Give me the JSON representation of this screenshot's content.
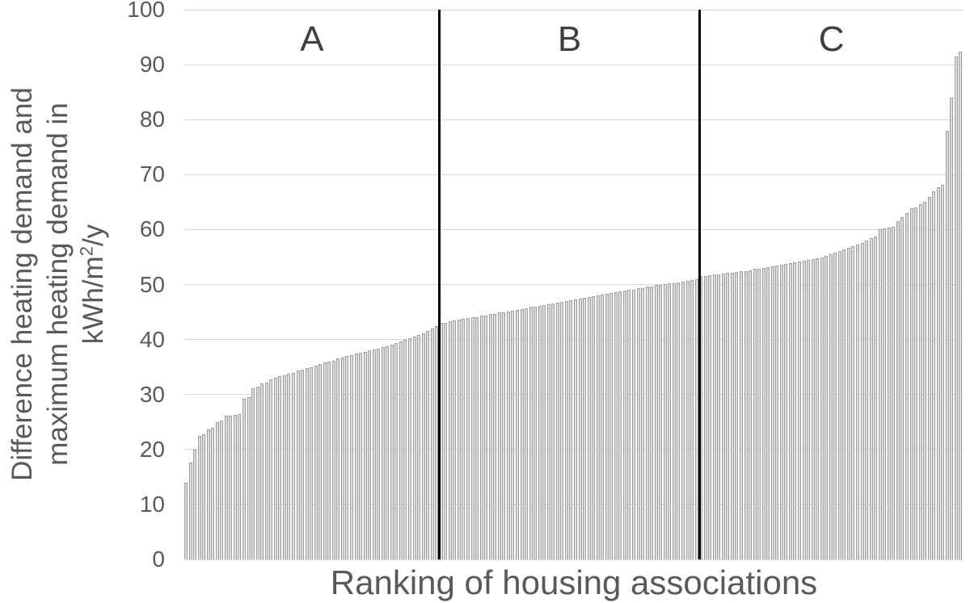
{
  "chart_data": {
    "type": "bar",
    "title": "",
    "xlabel": "Ranking of housing associations",
    "ylabel_lines": [
      "Difference heating demand and",
      "maximum heating demand in"
    ],
    "ylabel_unit": {
      "prefix": "kWh/m",
      "sup": "2",
      "suffix": "/y"
    },
    "ylim": [
      0,
      100
    ],
    "yticks": [
      0,
      10,
      20,
      30,
      40,
      50,
      60,
      70,
      80,
      90,
      100
    ],
    "grid": "horizontal",
    "legend": "none",
    "bar_color": "#dcdcdc",
    "bar_border_color": "#9e9e9e",
    "gridline_color": "#d9d9d9",
    "divider_color": "#000000",
    "text_color": "#595959",
    "sections": [
      {
        "label": "A",
        "values": [
          14.0,
          17.7,
          20.0,
          22.5,
          22.7,
          23.7,
          23.9,
          25.0,
          25.2,
          26.1,
          26.2,
          26.3,
          26.4,
          29.3,
          29.5,
          31.2,
          31.4,
          32.0,
          32.2,
          32.7,
          33.0,
          33.3,
          33.5,
          33.8,
          34.0,
          34.3,
          34.5,
          34.8,
          35.0,
          35.3,
          35.5,
          35.8,
          36.0,
          36.2,
          36.5,
          36.7,
          37.0,
          37.2,
          37.4,
          37.6,
          37.8,
          38.0,
          38.2,
          38.4,
          38.6,
          38.8,
          39.0,
          39.3,
          39.6,
          39.9,
          40.2,
          40.5,
          40.8,
          41.1,
          41.5,
          42.0,
          42.5
        ]
      },
      {
        "label": "B",
        "values": [
          43.0,
          43.1,
          43.3,
          43.4,
          43.6,
          43.7,
          43.9,
          44.0,
          44.1,
          44.3,
          44.4,
          44.6,
          44.7,
          44.9,
          45.0,
          45.1,
          45.3,
          45.4,
          45.6,
          45.7,
          45.9,
          46.0,
          46.1,
          46.3,
          46.4,
          46.6,
          46.7,
          46.9,
          47.0,
          47.1,
          47.3,
          47.4,
          47.6,
          47.7,
          47.9,
          48.0,
          48.1,
          48.3,
          48.4,
          48.6,
          48.7,
          48.9,
          49.0,
          49.1,
          49.3,
          49.4,
          49.6,
          49.7,
          49.9,
          50.0,
          50.1,
          50.2,
          50.3,
          50.4,
          50.5,
          50.6,
          50.8,
          51.0
        ]
      },
      {
        "label": "C",
        "values": [
          51.5,
          51.6,
          51.7,
          51.8,
          51.9,
          52.0,
          52.1,
          52.2,
          52.3,
          52.4,
          52.5,
          52.6,
          52.8,
          52.9,
          53.0,
          53.2,
          53.3,
          53.5,
          53.6,
          53.8,
          53.9,
          54.1,
          54.2,
          54.4,
          54.5,
          54.7,
          54.8,
          55.0,
          55.2,
          55.5,
          55.8,
          56.1,
          56.4,
          56.7,
          57.0,
          57.3,
          57.6,
          58.0,
          58.4,
          58.7,
          60.1,
          60.2,
          60.3,
          60.5,
          61.5,
          62.2,
          63.0,
          63.9,
          64.0,
          64.6,
          65.1,
          65.9,
          67.0,
          67.7,
          68.1,
          78.0,
          84.0,
          91.5,
          92.3
        ]
      }
    ]
  }
}
